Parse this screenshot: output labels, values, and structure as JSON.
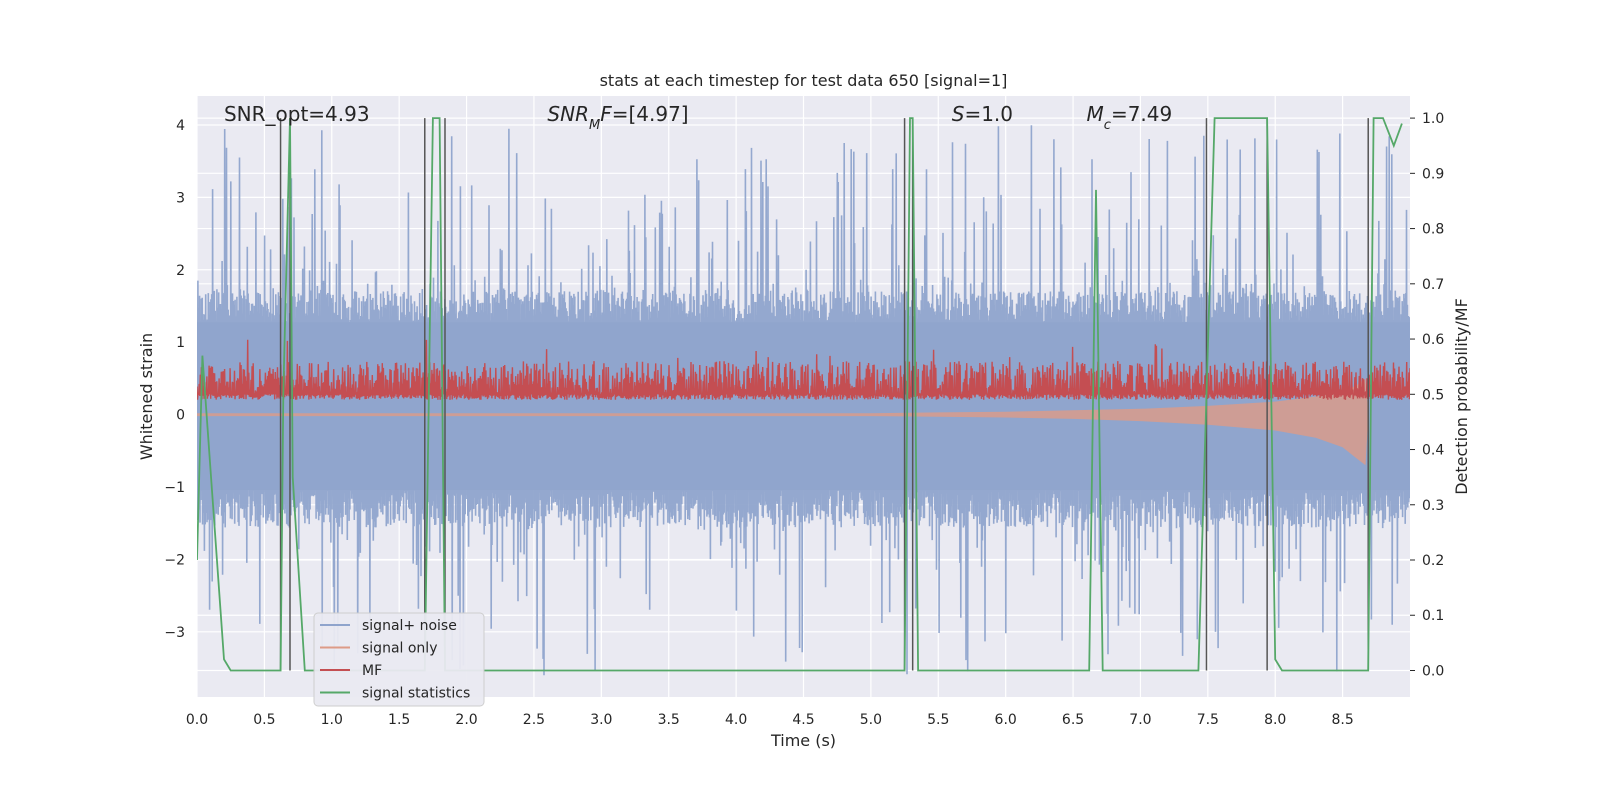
{
  "chart_data": {
    "type": "line",
    "title": "stats at each timestep for test data 650 [signal=1]",
    "xlabel": "Time (s)",
    "ylabel": "Whitened strain",
    "ylabel_right": "Detection probability/MF",
    "xlim": [
      0.0,
      9.0
    ],
    "ylim": [
      -3.9,
      4.4
    ],
    "ylim_right": [
      -0.048,
      1.04
    ],
    "x_ticks": [
      0.0,
      0.5,
      1.0,
      1.5,
      2.0,
      2.5,
      3.0,
      3.5,
      4.0,
      4.5,
      5.0,
      5.5,
      6.0,
      6.5,
      7.0,
      7.5,
      8.0,
      8.5
    ],
    "x_tick_labels": [
      "0.0",
      "0.5",
      "1.0",
      "1.5",
      "2.0",
      "2.5",
      "3.0",
      "3.5",
      "4.0",
      "4.5",
      "5.0",
      "5.5",
      "6.0",
      "6.5",
      "7.0",
      "7.5",
      "8.0",
      "8.5"
    ],
    "y_ticks": [
      -3,
      -2,
      -1,
      0,
      1,
      2,
      3,
      4
    ],
    "y_tick_labels": [
      "−3",
      "−2",
      "−1",
      "0",
      "1",
      "2",
      "3",
      "4"
    ],
    "y_right_ticks": [
      0.0,
      0.1,
      0.2,
      0.3,
      0.4,
      0.5,
      0.6,
      0.7,
      0.8,
      0.9,
      1.0
    ],
    "y_right_tick_labels": [
      "0.0",
      "0.1",
      "0.2",
      "0.3",
      "0.4",
      "0.5",
      "0.6",
      "0.7",
      "0.8",
      "0.9",
      "1.0"
    ],
    "grid": true,
    "legend_position": "lower-left",
    "annotations": [
      {
        "parts": [
          {
            "t": "SNR_opt=4.93",
            "i": false
          }
        ],
        "x": 0.2
      },
      {
        "parts": [
          {
            "t": "SNR",
            "i": true
          },
          {
            "t": "M",
            "i": true,
            "sub": true
          },
          {
            "t": "F",
            "i": true
          },
          {
            "t": "=[4.97]",
            "i": false
          }
        ],
        "x": 2.6
      },
      {
        "parts": [
          {
            "t": "S",
            "i": true
          },
          {
            "t": "=1.0",
            "i": false
          }
        ],
        "x": 5.6
      },
      {
        "parts": [
          {
            "t": "M",
            "i": true
          },
          {
            "t": "c",
            "i": true,
            "sub": true
          },
          {
            "t": "=7.49",
            "i": false
          }
        ],
        "x": 6.6
      }
    ],
    "vertical_lines_x": [
      0.62,
      0.69,
      1.69,
      1.84,
      5.25,
      5.31,
      7.49,
      7.94,
      8.69
    ],
    "series": [
      {
        "name": "signal+ noise",
        "axis": "left",
        "color": "#8fa4cc",
        "description_level": {
          "band_low": -1.3,
          "band_high": 1.7,
          "peak_high": 4.0,
          "peak_low": -3.6
        }
      },
      {
        "name": "signal only",
        "axis": "left",
        "color": "#dd9b87",
        "envelope": {
          "x": [
            0.0,
            5.0,
            5.5,
            6.0,
            6.5,
            7.0,
            7.5,
            8.0,
            8.3,
            8.5,
            8.6,
            8.67,
            8.69
          ],
          "upper": [
            0.02,
            0.02,
            0.03,
            0.04,
            0.06,
            0.08,
            0.12,
            0.18,
            0.25,
            0.32,
            0.4,
            0.5,
            0.05
          ],
          "lower": [
            -0.02,
            -0.02,
            -0.03,
            -0.04,
            -0.06,
            -0.09,
            -0.14,
            -0.22,
            -0.32,
            -0.45,
            -0.6,
            -0.7,
            -0.05
          ]
        }
      },
      {
        "name": "MF",
        "axis": "right",
        "color": "#c44e52",
        "baseline": 0.5,
        "typical_high": 0.56,
        "peak": 0.6
      },
      {
        "name": "signal statistics",
        "axis": "right",
        "color": "#55a868",
        "x": [
          0.0,
          0.04,
          0.2,
          0.25,
          0.62,
          0.64,
          0.69,
          0.71,
          0.8,
          1.69,
          1.75,
          1.8,
          1.84,
          1.87,
          5.25,
          5.29,
          5.31,
          5.35,
          6.62,
          6.67,
          6.72,
          7.43,
          7.55,
          7.94,
          8.0,
          8.05,
          8.69,
          8.73,
          8.8,
          8.88,
          8.94
        ],
        "y": [
          0.2,
          0.57,
          0.02,
          0.0,
          0.0,
          0.5,
          1.0,
          0.35,
          0.0,
          0.0,
          1.0,
          1.0,
          0.0,
          0.0,
          0.0,
          1.0,
          1.0,
          0.0,
          0.0,
          0.87,
          0.0,
          0.0,
          1.0,
          1.0,
          0.02,
          0.0,
          0.0,
          1.0,
          1.0,
          0.95,
          0.99
        ]
      }
    ]
  }
}
